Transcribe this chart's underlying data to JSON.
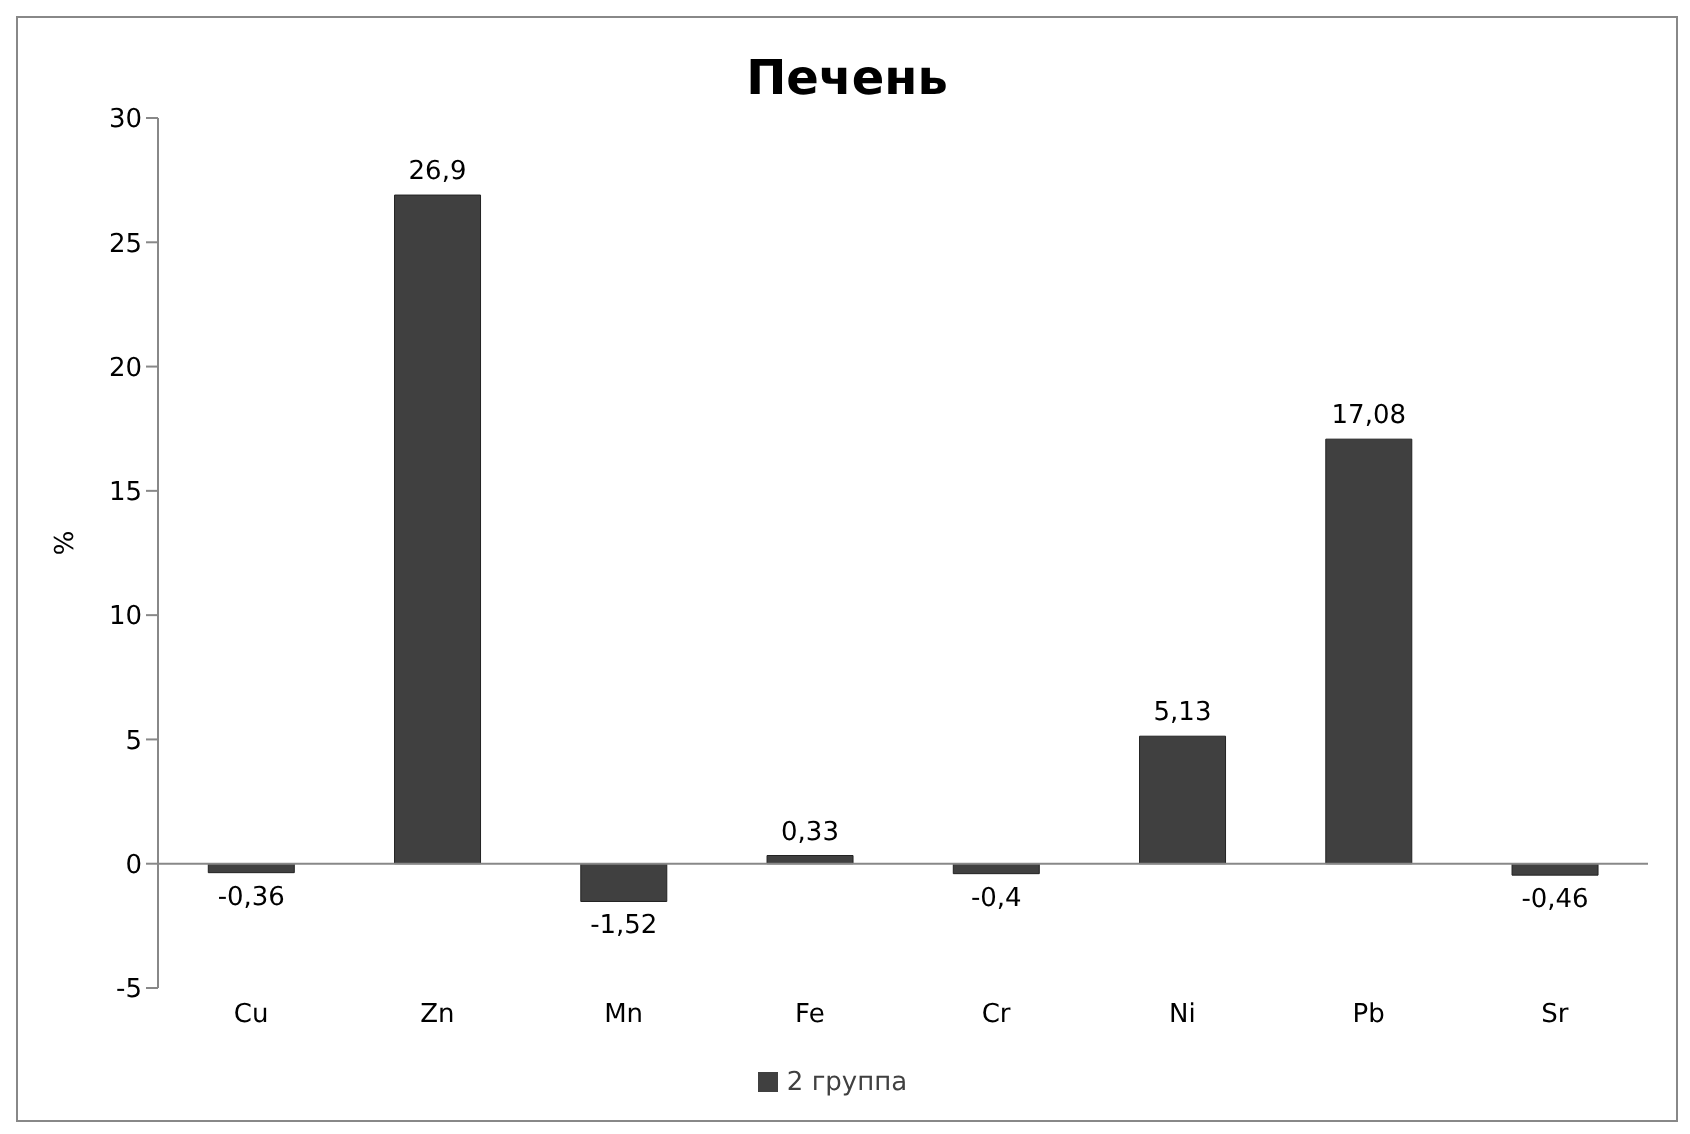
{
  "chart_data": {
    "type": "bar",
    "title": "Печень",
    "ylabel": "%",
    "categories": [
      "Cu",
      "Zn",
      "Mn",
      "Fe",
      "Cr",
      "Ni",
      "Pb",
      "Sr"
    ],
    "series": [
      {
        "name": "2 группа",
        "color": "#404040",
        "values": [
          -0.36,
          26.9,
          -1.52,
          0.33,
          -0.4,
          5.13,
          17.08,
          -0.46
        ],
        "value_labels": [
          "-0,36",
          "26,9",
          "-1,52",
          "0,33",
          "-0,4",
          "5,13",
          "17,08",
          "-0,46"
        ]
      }
    ],
    "ylim": [
      -5,
      30
    ],
    "yticks": [
      -5,
      0,
      5,
      10,
      15,
      20,
      25,
      30
    ],
    "legend": "bottom"
  }
}
